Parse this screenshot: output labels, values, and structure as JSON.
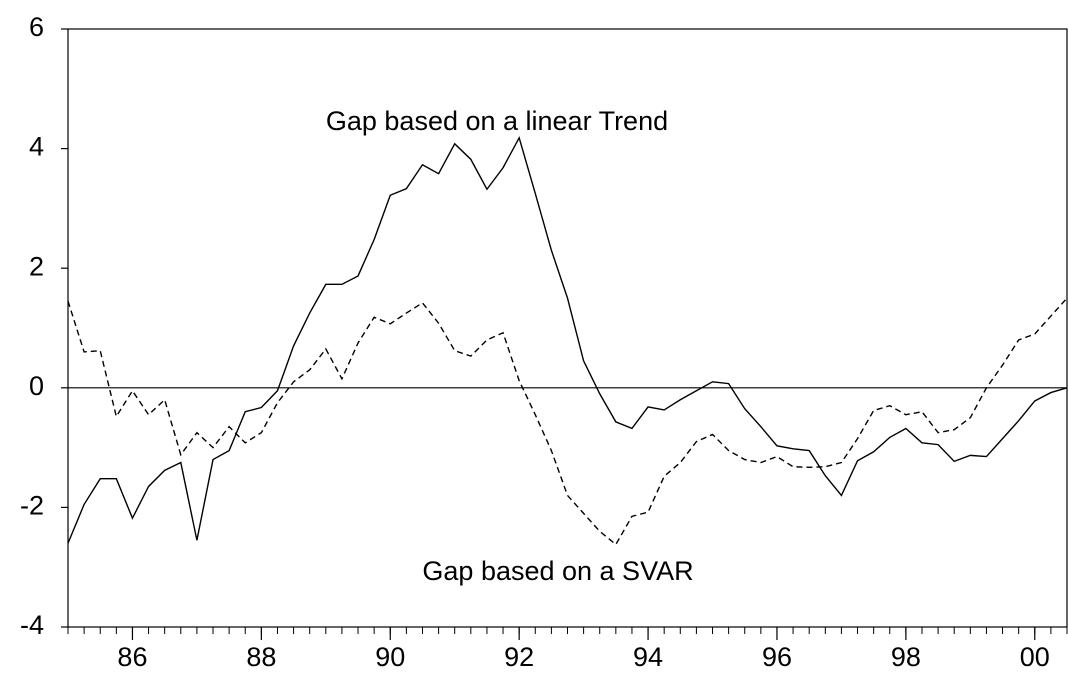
{
  "chart_data": {
    "type": "line",
    "x": [
      85,
      85.25,
      85.5,
      85.75,
      86,
      86.25,
      86.5,
      86.75,
      87,
      87.25,
      87.5,
      87.75,
      88,
      88.25,
      88.5,
      88.75,
      89,
      89.25,
      89.5,
      89.75,
      90,
      90.25,
      90.5,
      90.75,
      91,
      91.25,
      91.5,
      91.75,
      92,
      92.25,
      92.5,
      92.75,
      93,
      93.25,
      93.5,
      93.75,
      94,
      94.25,
      94.5,
      94.75,
      95,
      95.25,
      95.5,
      95.75,
      96,
      96.25,
      96.5,
      96.75,
      97,
      97.25,
      97.5,
      97.75,
      98,
      98.25,
      98.5,
      98.75,
      99,
      99.25,
      99.5,
      99.75,
      100,
      100.25,
      100.5
    ],
    "series": [
      {
        "name": "Gap based on a linear Trend",
        "color": "#000000",
        "dashed": false,
        "values": [
          -2.6,
          -1.95,
          -1.52,
          -1.52,
          -2.18,
          -1.65,
          -1.38,
          -1.25,
          -2.55,
          -1.2,
          -1.05,
          -0.4,
          -0.33,
          -0.05,
          0.7,
          1.25,
          1.73,
          1.73,
          1.87,
          2.48,
          3.22,
          3.33,
          3.73,
          3.58,
          4.08,
          3.82,
          3.32,
          3.68,
          4.18,
          3.25,
          2.3,
          1.5,
          0.45,
          -0.1,
          -0.57,
          -0.68,
          -0.32,
          -0.37,
          -0.2,
          -0.05,
          0.1,
          0.07,
          -0.35,
          -0.65,
          -0.97,
          -1.02,
          -1.05,
          -1.47,
          -1.8,
          -1.22,
          -1.07,
          -0.83,
          -0.68,
          -0.92,
          -0.95,
          -1.23,
          -1.13,
          -1.15,
          -0.85,
          -0.55,
          -0.22,
          -0.08,
          0.0
        ]
      },
      {
        "name": "Gap based on a SVAR",
        "color": "#000000",
        "dashed": true,
        "values": [
          1.45,
          0.6,
          0.62,
          -0.48,
          -0.05,
          -0.45,
          -0.2,
          -1.12,
          -0.75,
          -1.0,
          -0.65,
          -0.92,
          -0.75,
          -0.25,
          0.1,
          0.3,
          0.65,
          0.15,
          0.75,
          1.18,
          1.07,
          1.25,
          1.42,
          1.08,
          0.62,
          0.53,
          0.8,
          0.92,
          0.12,
          -0.45,
          -1.05,
          -1.8,
          -2.1,
          -2.4,
          -2.62,
          -2.15,
          -2.08,
          -1.48,
          -1.25,
          -0.9,
          -0.78,
          -1.05,
          -1.2,
          -1.25,
          -1.15,
          -1.32,
          -1.33,
          -1.32,
          -1.25,
          -0.85,
          -0.38,
          -0.3,
          -0.45,
          -0.4,
          -0.75,
          -0.7,
          -0.5,
          0.0,
          0.38,
          0.8,
          0.9,
          1.2,
          1.5
        ]
      }
    ],
    "xlim": [
      85,
      100.5
    ],
    "xticks": [
      86,
      88,
      90,
      92,
      94,
      96,
      98,
      {
        "value": 100,
        "label": "00"
      }
    ],
    "ylim": [
      -4,
      6
    ],
    "yticks": [
      -4,
      -2,
      0,
      2,
      4,
      6
    ],
    "zero_line": true
  }
}
